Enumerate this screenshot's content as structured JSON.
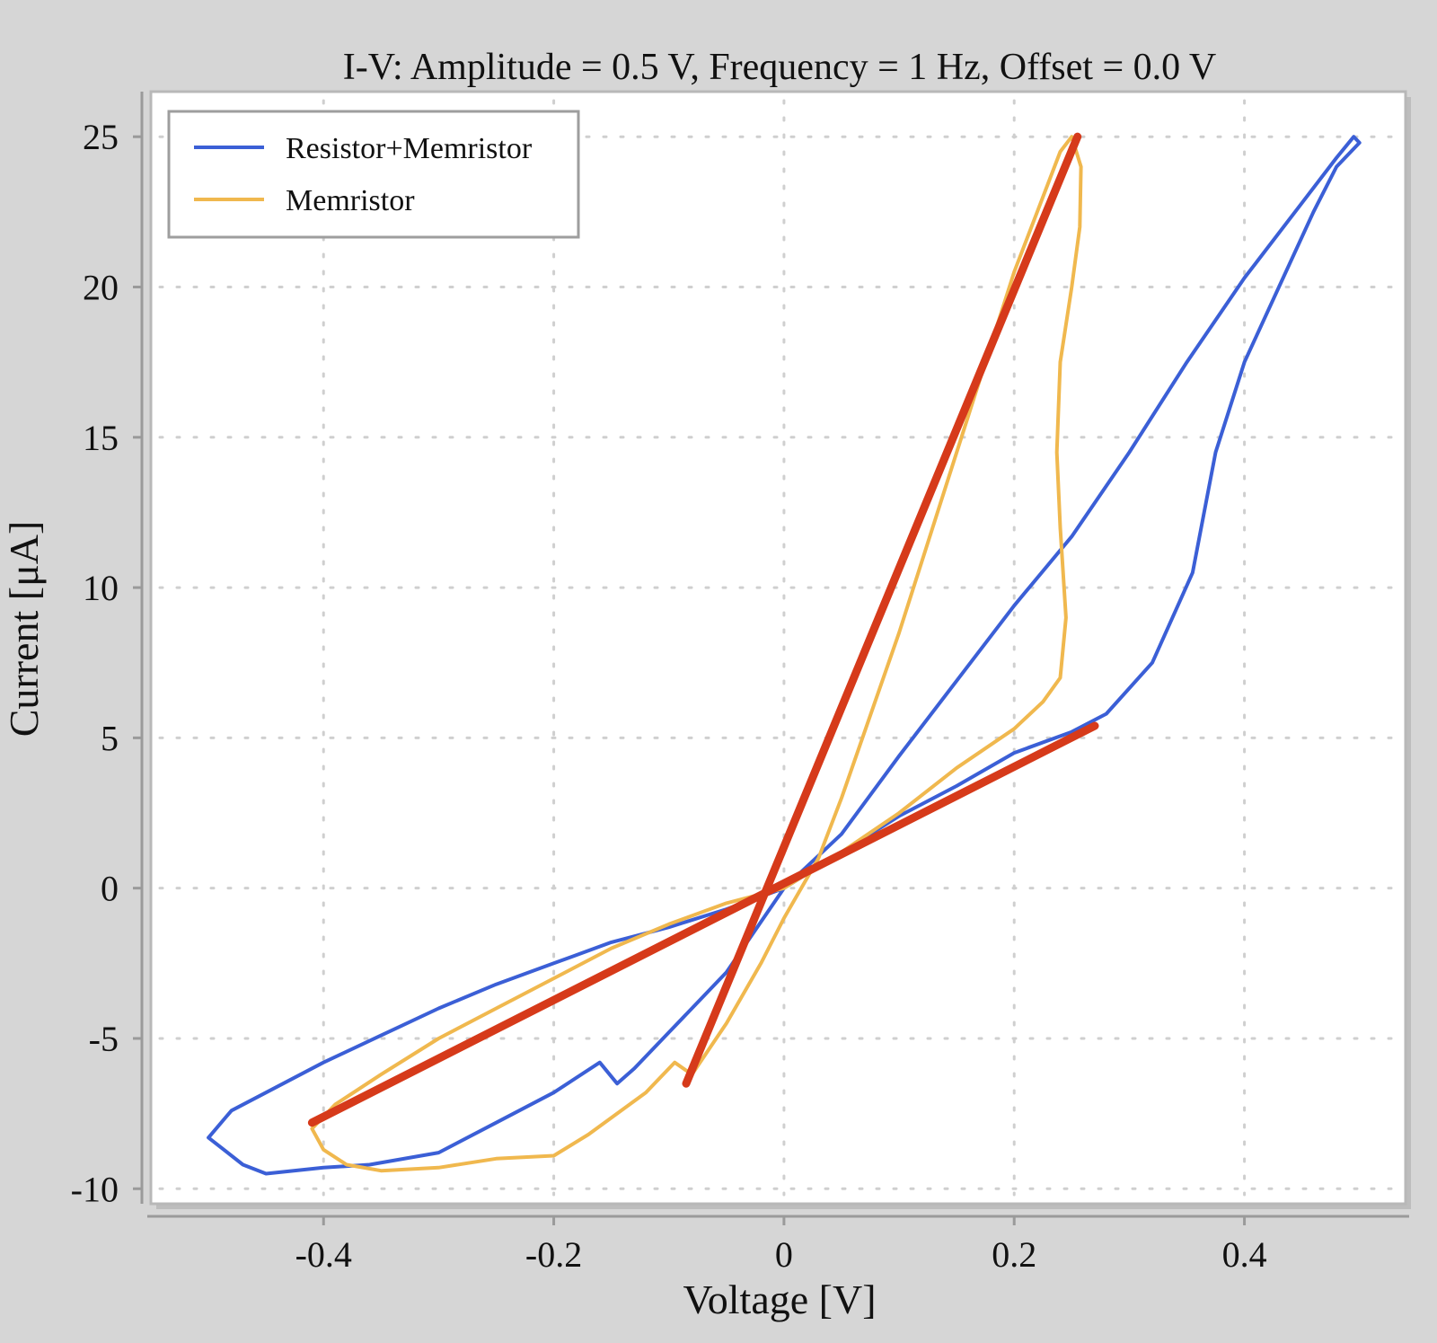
{
  "chart_data": {
    "type": "line",
    "title": "I-V: Amplitude = 0.5 V, Frequency = 1 Hz, Offset = 0.0 V",
    "xlabel": "Voltage [V]",
    "ylabel": "Current [μA]",
    "xlim": [
      -0.55,
      0.54
    ],
    "ylim": [
      -10.5,
      26.5
    ],
    "xticks": [
      -0.4,
      -0.2,
      0,
      0.2,
      0.4
    ],
    "xtick_labels": [
      "-0.4",
      "-0.2",
      "0",
      "0.2",
      "0.4"
    ],
    "yticks": [
      -10,
      -5,
      0,
      5,
      10,
      15,
      20,
      25
    ],
    "ytick_labels": [
      "-10",
      "-5",
      "0",
      "5",
      "10",
      "15",
      "20",
      "25"
    ],
    "grid": true,
    "legend_position": "top-left",
    "series": [
      {
        "name": "Resistor+Memristor",
        "color": "#3b5fd6",
        "points": [
          [
            0.0,
            0.0
          ],
          [
            0.05,
            1.2
          ],
          [
            0.1,
            2.4
          ],
          [
            0.15,
            3.4
          ],
          [
            0.2,
            4.5
          ],
          [
            0.25,
            5.2
          ],
          [
            0.28,
            5.8
          ],
          [
            0.32,
            7.5
          ],
          [
            0.355,
            10.5
          ],
          [
            0.375,
            14.5
          ],
          [
            0.4,
            17.5
          ],
          [
            0.43,
            20.0
          ],
          [
            0.46,
            22.5
          ],
          [
            0.48,
            24.0
          ],
          [
            0.5,
            24.8
          ],
          [
            0.495,
            25.0
          ],
          [
            0.48,
            24.3
          ],
          [
            0.45,
            22.8
          ],
          [
            0.4,
            20.3
          ],
          [
            0.35,
            17.5
          ],
          [
            0.3,
            14.5
          ],
          [
            0.25,
            11.7
          ],
          [
            0.2,
            9.4
          ],
          [
            0.15,
            6.9
          ],
          [
            0.1,
            4.4
          ],
          [
            0.05,
            1.8
          ],
          [
            0.0,
            0.0
          ],
          [
            -0.05,
            -2.8
          ],
          [
            -0.1,
            -4.8
          ],
          [
            -0.13,
            -6.0
          ],
          [
            -0.145,
            -6.5
          ],
          [
            -0.16,
            -5.8
          ],
          [
            -0.2,
            -6.8
          ],
          [
            -0.25,
            -7.8
          ],
          [
            -0.3,
            -8.8
          ],
          [
            -0.36,
            -9.2
          ],
          [
            -0.4,
            -9.3
          ],
          [
            -0.45,
            -9.5
          ],
          [
            -0.47,
            -9.2
          ],
          [
            -0.5,
            -8.3
          ],
          [
            -0.48,
            -7.4
          ],
          [
            -0.45,
            -6.8
          ],
          [
            -0.4,
            -5.8
          ],
          [
            -0.35,
            -4.9
          ],
          [
            -0.3,
            -4.0
          ],
          [
            -0.25,
            -3.2
          ],
          [
            -0.2,
            -2.5
          ],
          [
            -0.15,
            -1.8
          ],
          [
            -0.1,
            -1.3
          ],
          [
            -0.05,
            -0.7
          ],
          [
            0.0,
            0.0
          ]
        ]
      },
      {
        "name": "Memristor",
        "color": "#f0b84e",
        "points": [
          [
            0.0,
            0.0
          ],
          [
            0.05,
            1.2
          ],
          [
            0.1,
            2.5
          ],
          [
            0.15,
            4.0
          ],
          [
            0.2,
            5.3
          ],
          [
            0.225,
            6.2
          ],
          [
            0.24,
            7.0
          ],
          [
            0.245,
            9.0
          ],
          [
            0.24,
            12.0
          ],
          [
            0.237,
            14.5
          ],
          [
            0.24,
            17.5
          ],
          [
            0.25,
            20.0
          ],
          [
            0.257,
            22.0
          ],
          [
            0.258,
            24.0
          ],
          [
            0.25,
            25.0
          ],
          [
            0.24,
            24.5
          ],
          [
            0.22,
            22.5
          ],
          [
            0.2,
            20.5
          ],
          [
            0.15,
            14.5
          ],
          [
            0.1,
            8.5
          ],
          [
            0.05,
            3.0
          ],
          [
            0.03,
            1.0
          ],
          [
            0.0,
            -1.0
          ],
          [
            -0.02,
            -2.5
          ],
          [
            -0.05,
            -4.5
          ],
          [
            -0.08,
            -6.2
          ],
          [
            -0.095,
            -5.8
          ],
          [
            -0.12,
            -6.8
          ],
          [
            -0.17,
            -8.2
          ],
          [
            -0.2,
            -8.9
          ],
          [
            -0.25,
            -9.0
          ],
          [
            -0.3,
            -9.3
          ],
          [
            -0.35,
            -9.4
          ],
          [
            -0.38,
            -9.2
          ],
          [
            -0.4,
            -8.7
          ],
          [
            -0.41,
            -8.0
          ],
          [
            -0.39,
            -7.2
          ],
          [
            -0.35,
            -6.2
          ],
          [
            -0.3,
            -5.0
          ],
          [
            -0.25,
            -4.0
          ],
          [
            -0.2,
            -3.0
          ],
          [
            -0.15,
            -2.0
          ],
          [
            -0.1,
            -1.2
          ],
          [
            -0.05,
            -0.5
          ],
          [
            0.0,
            0.0
          ]
        ]
      },
      {
        "color": "#d63a1a",
        "points": [
          [
            -0.41,
            -7.8
          ],
          [
            0.27,
            5.4
          ]
        ]
      },
      {
        "color": "#d63a1a",
        "points": [
          [
            -0.085,
            -6.5
          ],
          [
            0.255,
            25.0
          ]
        ]
      }
    ]
  }
}
